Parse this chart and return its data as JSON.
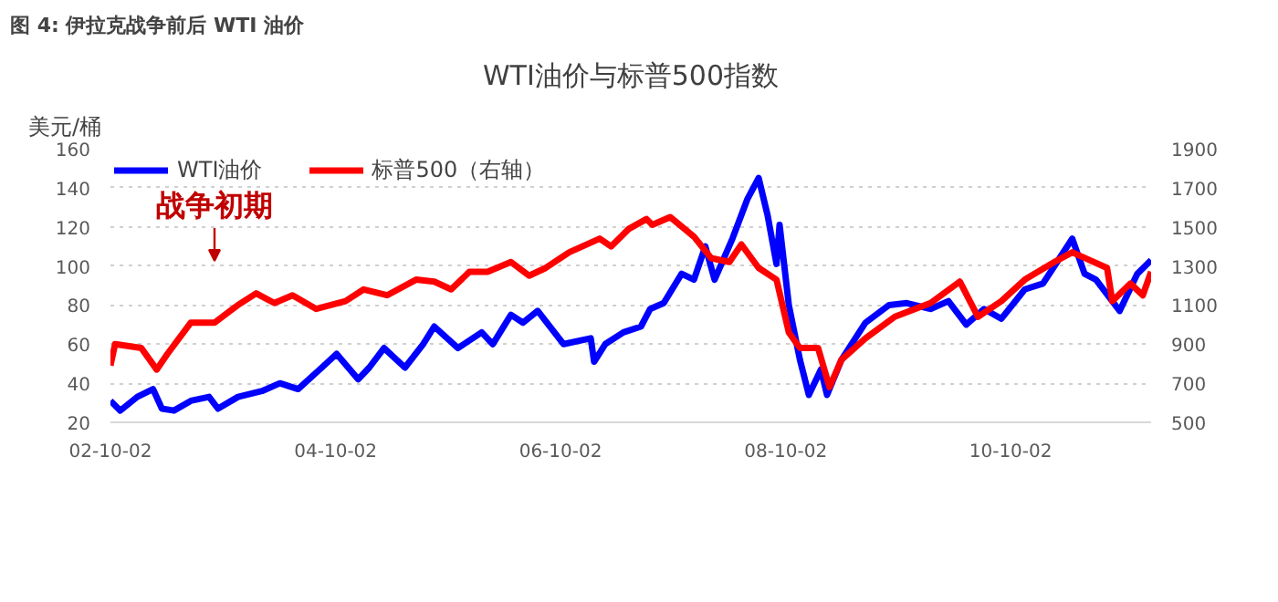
{
  "chart_data": {
    "type": "line",
    "title": "图 4: 伊拉克战争前后 WTI 油价",
    "subtitle": "WTI油价与标普500指数",
    "ylabel": "美元/桶",
    "xlim": [
      "2002-10-02",
      "2012-01-01"
    ],
    "xticks": [
      {
        "value": "2002-10-02",
        "label": "02-10-02"
      },
      {
        "value": "2004-10-02",
        "label": "04-10-02"
      },
      {
        "value": "2006-10-02",
        "label": "06-10-02"
      },
      {
        "value": "2008-10-02",
        "label": "08-10-02"
      },
      {
        "value": "2010-10-02",
        "label": "10-10-02"
      }
    ],
    "ylim": [
      20,
      160
    ],
    "yticks": [
      20,
      40,
      60,
      80,
      100,
      120,
      140,
      160
    ],
    "y2lim": [
      500,
      1900
    ],
    "y2ticks": [
      500,
      700,
      900,
      1100,
      1300,
      1500,
      1700,
      1900
    ],
    "grid": "y",
    "legend": "top left",
    "line_style": "solid",
    "annotations": [
      "战争初期"
    ],
    "series": [
      {
        "name": "WTI油价",
        "color": "#0000ff",
        "x": [
          "2002-10-02",
          "2002-11-03",
          "2002-12-28",
          "2003-02-17",
          "2003-03-18",
          "2003-04-26",
          "2003-06-20",
          "2003-08-18",
          "2003-09-16",
          "2003-11-20",
          "2004-02-06",
          "2004-04-04",
          "2004-06-02",
          "2004-08-18",
          "2004-10-05",
          "2004-12-14",
          "2005-01-19",
          "2005-03-08",
          "2005-05-15",
          "2005-07-13",
          "2005-08-18",
          "2005-11-03",
          "2006-01-19",
          "2006-02-24",
          "2006-04-24",
          "2006-06-02",
          "2006-07-20",
          "2006-10-12",
          "2007-01-08",
          "2007-01-19",
          "2007-02-24",
          "2007-04-24",
          "2007-06-20",
          "2007-07-20",
          "2007-09-02",
          "2007-10-30",
          "2007-12-09",
          "2008-01-15",
          "2008-02-14",
          "2008-04-12",
          "2008-05-30",
          "2008-07-06",
          "2008-08-04",
          "2008-09-02",
          "2008-09-12",
          "2008-10-12",
          "2008-11-17",
          "2008-12-16",
          "2009-01-24",
          "2009-02-13",
          "2009-04-01",
          "2009-06-18",
          "2009-09-02",
          "2009-10-30",
          "2010-01-15",
          "2010-03-14",
          "2010-05-11",
          "2010-07-08",
          "2010-09-02",
          "2010-11-17",
          "2011-01-15",
          "2011-03-10",
          "2011-04-20",
          "2011-05-30",
          "2011-07-06",
          "2011-09-21",
          "2011-11-17",
          "2012-01-01"
        ],
        "values": [
          31,
          26,
          33,
          37,
          27,
          26,
          31,
          33,
          27,
          33,
          36,
          40,
          37,
          48,
          55,
          42,
          48,
          58,
          48,
          60,
          69,
          58,
          66,
          60,
          75,
          71,
          77,
          60,
          63,
          51,
          60,
          66,
          69,
          78,
          81,
          96,
          93,
          110,
          93,
          114,
          134,
          145,
          126,
          101,
          121,
          80,
          52,
          34,
          47,
          34,
          52,
          71,
          80,
          81,
          78,
          82,
          70,
          78,
          73,
          88,
          91,
          104,
          114,
          96,
          93,
          77,
          96,
          103
        ]
      },
      {
        "name": "标普500（右轴）",
        "color": "#ff0000",
        "axis": "y2",
        "x": [
          "2002-10-02",
          "2002-10-17",
          "2003-01-10",
          "2003-03-01",
          "2003-04-05",
          "2003-06-20",
          "2003-09-05",
          "2003-11-20",
          "2004-01-18",
          "2004-03-17",
          "2004-05-15",
          "2004-07-31",
          "2004-11-03",
          "2005-01-01",
          "2005-03-18",
          "2005-06-20",
          "2005-08-18",
          "2005-10-12",
          "2005-12-10",
          "2006-02-07",
          "2006-04-24",
          "2006-06-22",
          "2006-08-15",
          "2006-10-30",
          "2007-02-06",
          "2007-03-15",
          "2007-05-12",
          "2007-07-08",
          "2007-07-27",
          "2007-09-23",
          "2007-12-09",
          "2008-02-03",
          "2008-04-02",
          "2008-05-11",
          "2008-07-06",
          "2008-09-02",
          "2008-10-12",
          "2008-11-17",
          "2009-01-15",
          "2009-02-21",
          "2009-04-01",
          "2009-06-18",
          "2009-09-21",
          "2010-01-15",
          "2010-04-20",
          "2010-06-18",
          "2010-09-02",
          "2010-11-17",
          "2011-02-21",
          "2011-04-20",
          "2011-06-15",
          "2011-08-11",
          "2011-08-28",
          "2011-10-26",
          "2011-12-05",
          "2012-01-01"
        ],
        "values": [
          790,
          900,
          880,
          770,
          850,
          1010,
          1010,
          1100,
          1160,
          1110,
          1150,
          1080,
          1120,
          1180,
          1150,
          1230,
          1220,
          1180,
          1270,
          1270,
          1320,
          1250,
          1290,
          1370,
          1440,
          1400,
          1490,
          1540,
          1510,
          1550,
          1450,
          1340,
          1320,
          1410,
          1290,
          1230,
          960,
          880,
          880,
          680,
          820,
          930,
          1040,
          1110,
          1220,
          1040,
          1120,
          1230,
          1320,
          1370,
          1330,
          1290,
          1120,
          1210,
          1150,
          1270
        ]
      }
    ]
  }
}
